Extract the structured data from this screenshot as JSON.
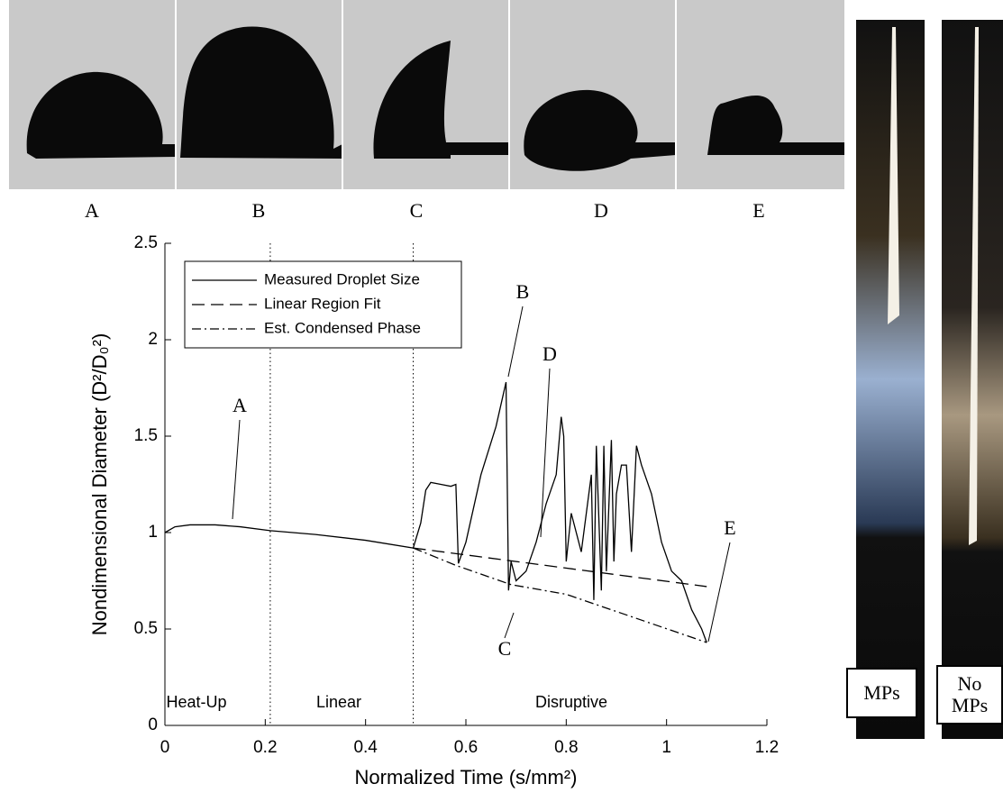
{
  "chart_data": {
    "type": "line",
    "x_label": "Normalized Time (s/mm²)",
    "y_label": "Nondimensional Diameter (D²/D₀²)",
    "xlim": [
      0,
      1.2
    ],
    "ylim": [
      0,
      2.5
    ],
    "xticks": [
      0,
      0.2,
      0.4,
      0.6,
      0.8,
      1,
      1.2
    ],
    "yticks": [
      0,
      0.5,
      1,
      1.5,
      2,
      2.5
    ],
    "legend": "upper left",
    "region_lines": [
      0.21,
      0.495
    ],
    "region_labels": [
      "Heat-Up",
      "Linear",
      "Disruptive"
    ],
    "annotations": [
      "A",
      "B",
      "C",
      "D",
      "E"
    ],
    "series": [
      {
        "name": "Measured Droplet Size",
        "color": "#000000",
        "style": "solid",
        "x": [
          0,
          0.02,
          0.05,
          0.1,
          0.15,
          0.21,
          0.3,
          0.4,
          0.495,
          0.51,
          0.52,
          0.53,
          0.55,
          0.57,
          0.58,
          0.585,
          0.6,
          0.63,
          0.66,
          0.68,
          0.685,
          0.69,
          0.7,
          0.72,
          0.74,
          0.76,
          0.78,
          0.79,
          0.795,
          0.8,
          0.81,
          0.83,
          0.85,
          0.855,
          0.86,
          0.87,
          0.875,
          0.88,
          0.89,
          0.895,
          0.9,
          0.91,
          0.92,
          0.93,
          0.94,
          0.95,
          0.97,
          0.99,
          1.01,
          1.03,
          1.05,
          1.07,
          1.08
        ],
        "values": [
          1.0,
          1.03,
          1.04,
          1.04,
          1.03,
          1.01,
          0.99,
          0.96,
          0.92,
          1.05,
          1.22,
          1.26,
          1.25,
          1.24,
          1.25,
          0.84,
          0.95,
          1.3,
          1.55,
          1.78,
          0.7,
          0.85,
          0.75,
          0.8,
          0.95,
          1.15,
          1.3,
          1.6,
          1.5,
          0.85,
          1.1,
          0.9,
          1.3,
          0.65,
          1.45,
          0.7,
          1.45,
          0.8,
          1.48,
          0.85,
          1.2,
          1.35,
          1.35,
          0.9,
          1.45,
          1.35,
          1.2,
          0.95,
          0.8,
          0.75,
          0.6,
          0.5,
          0.43
        ]
      },
      {
        "name": "Linear Region Fit",
        "color": "#000000",
        "style": "dashed",
        "x": [
          0.495,
          1.08
        ],
        "values": [
          0.92,
          0.72
        ]
      },
      {
        "name": "Est. Condensed Phase",
        "color": "#000000",
        "style": "dashdot",
        "x": [
          0.495,
          0.58,
          0.69,
          0.8,
          1.08
        ],
        "values": [
          0.92,
          0.83,
          0.73,
          0.68,
          0.43
        ]
      }
    ]
  },
  "photos": {
    "labels": [
      "A",
      "B",
      "C",
      "D",
      "E"
    ]
  },
  "flames": {
    "labels": [
      "MPs",
      "No MPs"
    ]
  }
}
